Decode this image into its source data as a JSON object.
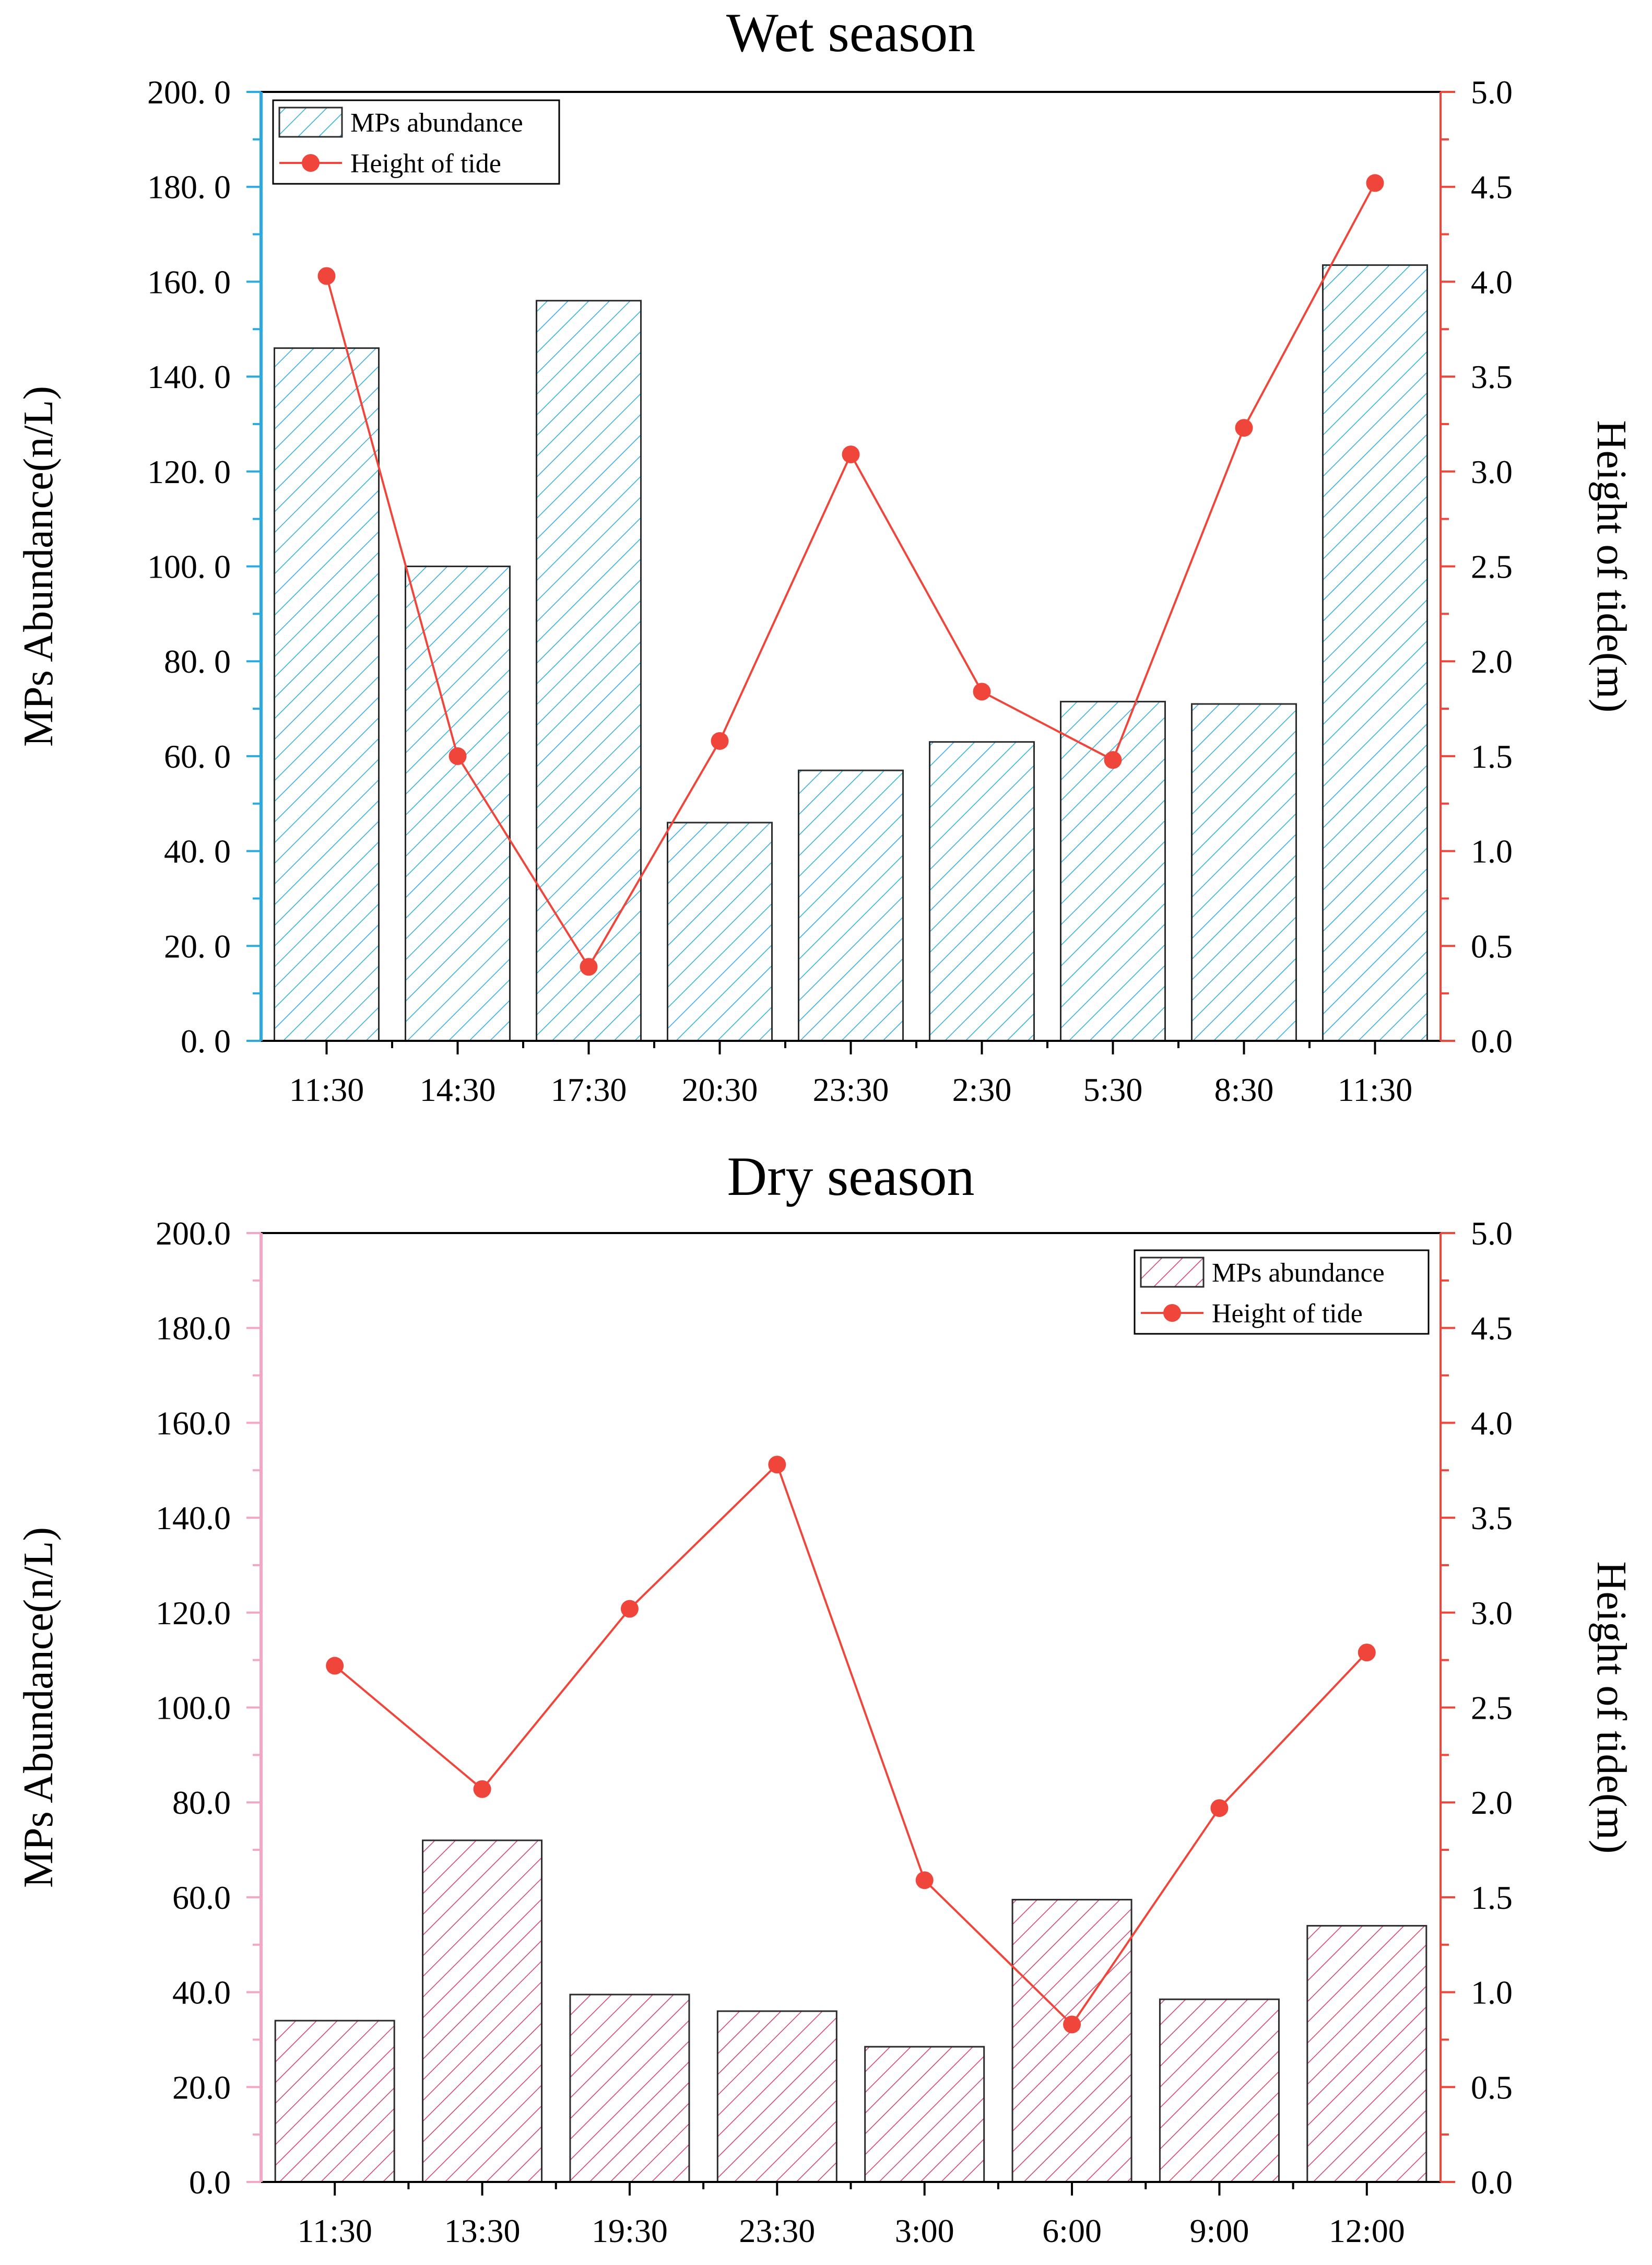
{
  "chart_data": [
    {
      "type": "bar+line",
      "title": "Wet season",
      "categories": [
        "11:30",
        "14:30",
        "17:30",
        "20:30",
        "23:30",
        "2:30",
        "5:30",
        "8:30",
        "11:30"
      ],
      "series": [
        {
          "name": "MPs abundance",
          "type": "bar",
          "axis": "left",
          "values": [
            146.0,
            100.0,
            156.0,
            46.0,
            57.0,
            63.0,
            71.5,
            71.0,
            163.5
          ]
        },
        {
          "name": "Height of tide",
          "type": "line",
          "axis": "right",
          "values": [
            4.03,
            1.5,
            0.39,
            1.58,
            3.09,
            1.84,
            1.48,
            3.23,
            4.52
          ]
        }
      ],
      "ylabel": "MPs Abundance(n/L)",
      "y2label": "Height of tide(m)",
      "ylim": [
        0,
        200
      ],
      "y2lim": [
        0,
        5
      ],
      "yticks": [
        "0. 0",
        "20. 0",
        "40. 0",
        "60. 0",
        "80. 0",
        "100. 0",
        "120. 0",
        "140. 0",
        "160. 0",
        "180. 0",
        "200. 0"
      ],
      "y2ticks": [
        "0.0",
        "0.5",
        "1.0",
        "1.5",
        "2.0",
        "2.5",
        "3.0",
        "3.5",
        "4.0",
        "4.5",
        "5.0"
      ],
      "legend": {
        "position": "top-left",
        "labels": [
          "MPs abundance",
          "Height of tide"
        ]
      },
      "colors": {
        "bar_hatch": "#36b0df",
        "left_axis": "#29abe2",
        "line": "#f0453a",
        "right_axis": "#f0453a"
      }
    },
    {
      "type": "bar+line",
      "title": "Dry season",
      "categories": [
        "11:30",
        "13:30",
        "19:30",
        "23:30",
        "3:00",
        "6:00",
        "9:00",
        "12:00"
      ],
      "series": [
        {
          "name": "MPs abundance",
          "type": "bar",
          "axis": "left",
          "values": [
            34.0,
            72.0,
            39.5,
            36.0,
            28.5,
            59.5,
            38.5,
            54.0
          ]
        },
        {
          "name": "Height of tide",
          "type": "line",
          "axis": "right",
          "values": [
            2.72,
            2.07,
            3.02,
            3.78,
            1.59,
            0.83,
            1.97,
            2.79
          ]
        }
      ],
      "ylabel": "MPs Abundance(n/L)",
      "y2label": "Height of tide(m)",
      "ylim": [
        0,
        200
      ],
      "y2lim": [
        0,
        5
      ],
      "yticks": [
        "0.0",
        "20.0",
        "40.0",
        "60.0",
        "80.0",
        "100.0",
        "120.0",
        "140.0",
        "160.0",
        "180.0",
        "200.0"
      ],
      "y2ticks": [
        "0.0",
        "0.5",
        "1.0",
        "1.5",
        "2.0",
        "2.5",
        "3.0",
        "3.5",
        "4.0",
        "4.5",
        "5.0"
      ],
      "legend": {
        "position": "top-right",
        "labels": [
          "MPs abundance",
          "Height of tide"
        ]
      },
      "colors": {
        "bar_hatch": "#d4466e",
        "left_axis": "#f4a6c4",
        "line": "#f0453a",
        "right_axis": "#f0453a"
      }
    }
  ]
}
